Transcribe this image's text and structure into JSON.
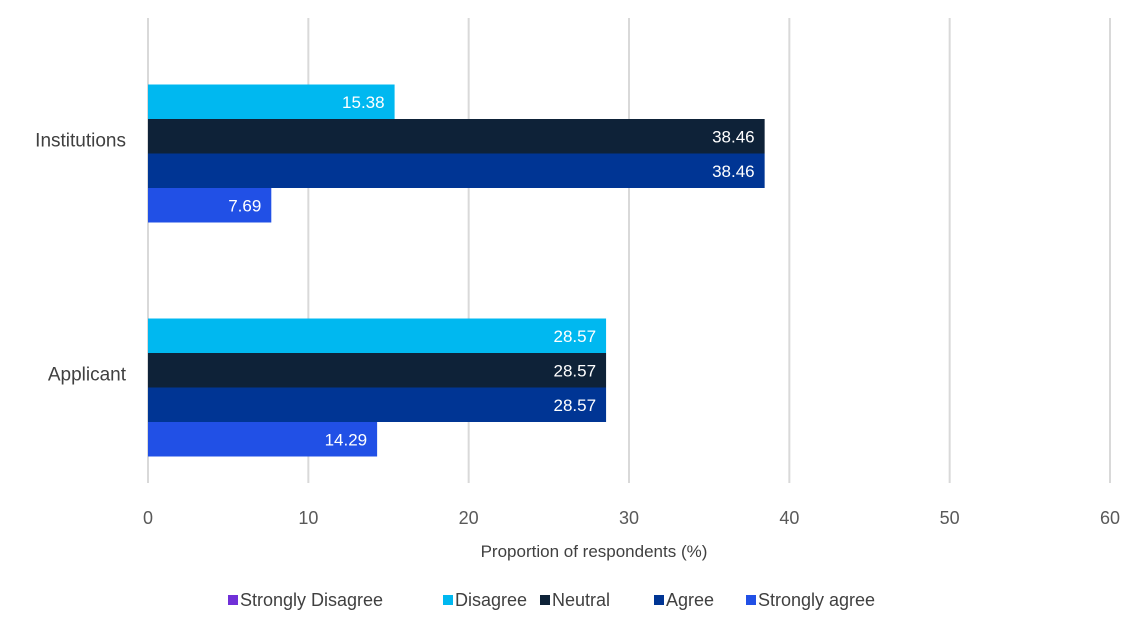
{
  "chart_data": {
    "type": "bar",
    "orientation": "horizontal",
    "categories": [
      "Institutions",
      "Applicant"
    ],
    "series": [
      {
        "name": "Strongly Disagree",
        "color": "#7030d8",
        "values": [
          0,
          0
        ]
      },
      {
        "name": "Disagree",
        "color": "#00b8f0",
        "values": [
          15.38,
          28.57
        ]
      },
      {
        "name": "Neutral",
        "color": "#0e2238",
        "values": [
          38.46,
          28.57
        ]
      },
      {
        "name": "Agree",
        "color": "#003594",
        "values": [
          38.46,
          28.57
        ]
      },
      {
        "name": "Strongly agree",
        "color": "#2150e6",
        "values": [
          7.69,
          14.29
        ]
      }
    ],
    "data_labels": [
      [
        "",
        ""
      ],
      [
        "15.38",
        "28.57"
      ],
      [
        "38.46",
        "28.57"
      ],
      [
        "38.46",
        "28.57"
      ],
      [
        "7.69",
        "14.29"
      ]
    ],
    "xlabel": "Proportion of respondents (%)",
    "ylabel": "",
    "xlim": [
      0,
      60
    ],
    "xticks": [
      "0",
      "10",
      "20",
      "30",
      "40",
      "50",
      "60"
    ],
    "grid": true,
    "legend_position": "bottom"
  }
}
